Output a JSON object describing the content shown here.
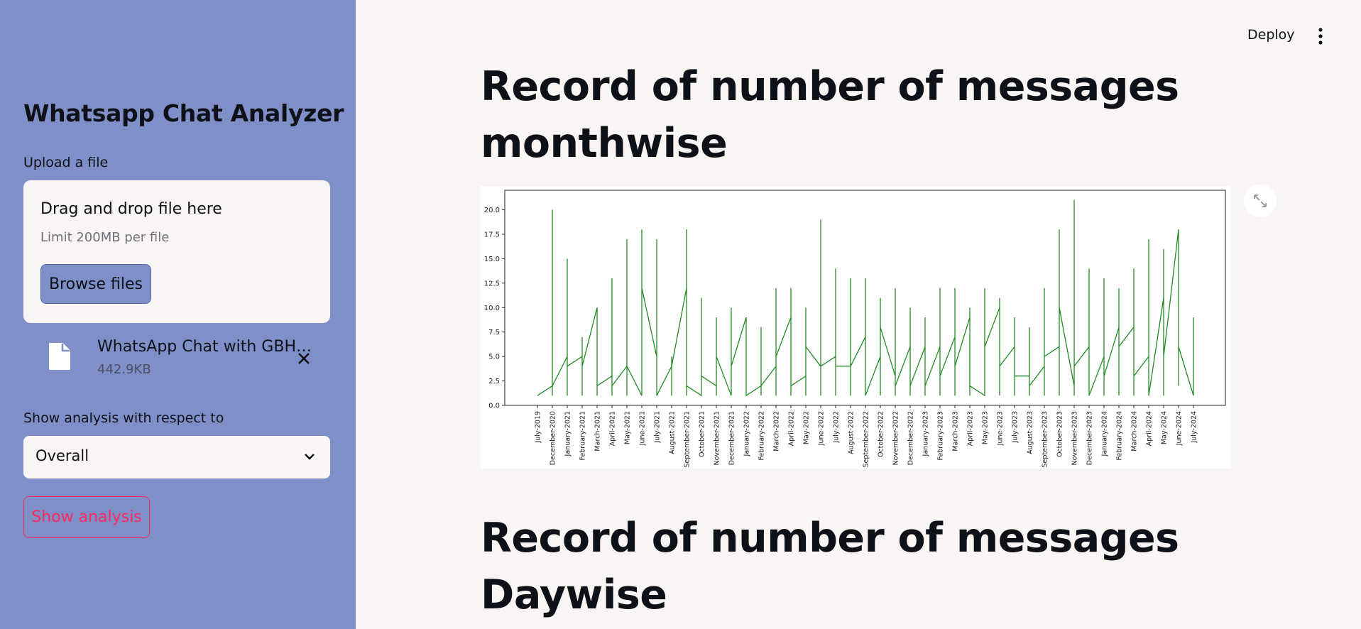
{
  "sidebar": {
    "title": "Whatsapp Chat Analyzer",
    "upload_label": "Upload a file",
    "dropzone": {
      "title": "Drag and drop file here",
      "limit": "Limit 200MB per file",
      "browse_label": "Browse files"
    },
    "file": {
      "name": "WhatsApp Chat with GBH…",
      "size": "442.9KB",
      "icon": "file-icon",
      "remove_icon": "close-icon"
    },
    "analysis_label": "Show analysis with respect to",
    "select_value": "Overall",
    "show_button": "Show analysis"
  },
  "header": {
    "deploy": "Deploy",
    "menu_icon": "vertical-dots-icon"
  },
  "main": {
    "heading1_line1": "Record of number of messages",
    "heading1_line2": "monthwise",
    "heading2_line1": "Record of number of messages",
    "heading2_line2": "Daywise",
    "expand_icon": "fullscreen-icon"
  },
  "colors": {
    "sidebar_bg": "#7f8fc8",
    "page_bg": "#f9f5f4",
    "accent": "#ff2b5f",
    "line": "#228b22"
  },
  "chart_data": {
    "type": "line",
    "title": "",
    "xlabel": "",
    "ylabel": "",
    "ylim": [
      0,
      22
    ],
    "yticks": [
      "0.0",
      "2.5",
      "5.0",
      "7.5",
      "10.0",
      "12.5",
      "15.0",
      "17.5",
      "20.0"
    ],
    "categories": [
      "July-2019",
      "December-2020",
      "January-2021",
      "February-2021",
      "March-2021",
      "April-2021",
      "May-2021",
      "June-2021",
      "July-2021",
      "August-2021",
      "September-2021",
      "October-2021",
      "November-2021",
      "December-2021",
      "January-2022",
      "February-2022",
      "March-2022",
      "April-2022",
      "May-2022",
      "June-2022",
      "July-2022",
      "August-2022",
      "September-2022",
      "October-2022",
      "November-2022",
      "December-2022",
      "January-2023",
      "February-2023",
      "March-2023",
      "April-2023",
      "May-2023",
      "June-2023",
      "July-2023",
      "August-2023",
      "September-2023",
      "October-2023",
      "November-2023",
      "December-2023",
      "January-2024",
      "February-2024",
      "March-2024",
      "April-2024",
      "May-2024",
      "June-2024",
      "July-2024"
    ],
    "series": [
      {
        "color": "#228b22",
        "points": [
          [
            "July-2019",
            1
          ],
          [
            "December-2020",
            2
          ],
          [
            "December-2020",
            20
          ],
          [
            "December-2020",
            1
          ],
          [
            "December-2020",
            2
          ],
          [
            "January-2021",
            5
          ],
          [
            "January-2021",
            15
          ],
          [
            "January-2021",
            1
          ],
          [
            "January-2021",
            4
          ],
          [
            "February-2021",
            5
          ],
          [
            "February-2021",
            7
          ],
          [
            "February-2021",
            1
          ],
          [
            "February-2021",
            4
          ],
          [
            "March-2021",
            10
          ],
          [
            "March-2021",
            1
          ],
          [
            "March-2021",
            2
          ],
          [
            "April-2021",
            3
          ],
          [
            "April-2021",
            13
          ],
          [
            "April-2021",
            1
          ],
          [
            "April-2021",
            2
          ],
          [
            "May-2021",
            4
          ],
          [
            "May-2021",
            17
          ],
          [
            "May-2021",
            1
          ],
          [
            "May-2021",
            4
          ],
          [
            "June-2021",
            1
          ],
          [
            "June-2021",
            18
          ],
          [
            "June-2021",
            12
          ],
          [
            "July-2021",
            5
          ],
          [
            "July-2021",
            17
          ],
          [
            "July-2021",
            1
          ],
          [
            "August-2021",
            4
          ],
          [
            "August-2021",
            5
          ],
          [
            "August-2021",
            1
          ],
          [
            "August-2021",
            4
          ],
          [
            "September-2021",
            12
          ],
          [
            "September-2021",
            18
          ],
          [
            "September-2021",
            1
          ],
          [
            "September-2021",
            2
          ],
          [
            "October-2021",
            1
          ],
          [
            "October-2021",
            11
          ],
          [
            "October-2021",
            3
          ],
          [
            "November-2021",
            2
          ],
          [
            "November-2021",
            9
          ],
          [
            "November-2021",
            1
          ],
          [
            "November-2021",
            5
          ],
          [
            "December-2021",
            1
          ],
          [
            "December-2021",
            10
          ],
          [
            "December-2021",
            4
          ],
          [
            "January-2022",
            9
          ],
          [
            "January-2022",
            1
          ],
          [
            "February-2022",
            2
          ],
          [
            "February-2022",
            8
          ],
          [
            "February-2022",
            1
          ],
          [
            "February-2022",
            2
          ],
          [
            "March-2022",
            4
          ],
          [
            "March-2022",
            12
          ],
          [
            "March-2022",
            1
          ],
          [
            "March-2022",
            5
          ],
          [
            "April-2022",
            9
          ],
          [
            "April-2022",
            12
          ],
          [
            "April-2022",
            1
          ],
          [
            "April-2022",
            2
          ],
          [
            "May-2022",
            3
          ],
          [
            "May-2022",
            10
          ],
          [
            "May-2022",
            1
          ],
          [
            "May-2022",
            6
          ],
          [
            "June-2022",
            4
          ],
          [
            "June-2022",
            19
          ],
          [
            "June-2022",
            1
          ],
          [
            "June-2022",
            4
          ],
          [
            "July-2022",
            5
          ],
          [
            "July-2022",
            14
          ],
          [
            "July-2022",
            1
          ],
          [
            "July-2022",
            4
          ],
          [
            "August-2022",
            4
          ],
          [
            "August-2022",
            13
          ],
          [
            "August-2022",
            1
          ],
          [
            "August-2022",
            4
          ],
          [
            "September-2022",
            7
          ],
          [
            "September-2022",
            13
          ],
          [
            "September-2022",
            1
          ],
          [
            "October-2022",
            5
          ],
          [
            "October-2022",
            11
          ],
          [
            "October-2022",
            1
          ],
          [
            "October-2022",
            8
          ],
          [
            "November-2022",
            3
          ],
          [
            "November-2022",
            12
          ],
          [
            "November-2022",
            1
          ],
          [
            "November-2022",
            2
          ],
          [
            "December-2022",
            6
          ],
          [
            "December-2022",
            10
          ],
          [
            "December-2022",
            1
          ],
          [
            "December-2022",
            2
          ],
          [
            "January-2023",
            6
          ],
          [
            "January-2023",
            9
          ],
          [
            "January-2023",
            1
          ],
          [
            "January-2023",
            2
          ],
          [
            "February-2023",
            6
          ],
          [
            "February-2023",
            12
          ],
          [
            "February-2023",
            1
          ],
          [
            "February-2023",
            3
          ],
          [
            "March-2023",
            7
          ],
          [
            "March-2023",
            12
          ],
          [
            "March-2023",
            1
          ],
          [
            "March-2023",
            4
          ],
          [
            "April-2023",
            9
          ],
          [
            "April-2023",
            10
          ],
          [
            "April-2023",
            1
          ],
          [
            "April-2023",
            2
          ],
          [
            "May-2023",
            1
          ],
          [
            "May-2023",
            12
          ],
          [
            "May-2023",
            6
          ],
          [
            "June-2023",
            10
          ],
          [
            "June-2023",
            11
          ],
          [
            "June-2023",
            1
          ],
          [
            "June-2023",
            4
          ],
          [
            "July-2023",
            6
          ],
          [
            "July-2023",
            9
          ],
          [
            "July-2023",
            1
          ],
          [
            "July-2023",
            3
          ],
          [
            "August-2023",
            3
          ],
          [
            "August-2023",
            8
          ],
          [
            "August-2023",
            1
          ],
          [
            "August-2023",
            2
          ],
          [
            "September-2023",
            4
          ],
          [
            "September-2023",
            12
          ],
          [
            "September-2023",
            1
          ],
          [
            "September-2023",
            5
          ],
          [
            "October-2023",
            6
          ],
          [
            "October-2023",
            18
          ],
          [
            "October-2023",
            1
          ],
          [
            "October-2023",
            10
          ],
          [
            "November-2023",
            2
          ],
          [
            "November-2023",
            21
          ],
          [
            "November-2023",
            1
          ],
          [
            "November-2023",
            4
          ],
          [
            "December-2023",
            6
          ],
          [
            "December-2023",
            14
          ],
          [
            "December-2023",
            1
          ],
          [
            "January-2024",
            5
          ],
          [
            "January-2024",
            13
          ],
          [
            "January-2024",
            1
          ],
          [
            "January-2024",
            3
          ],
          [
            "February-2024",
            8
          ],
          [
            "February-2024",
            12
          ],
          [
            "February-2024",
            1
          ],
          [
            "February-2024",
            6
          ],
          [
            "March-2024",
            8
          ],
          [
            "March-2024",
            14
          ],
          [
            "March-2024",
            1
          ],
          [
            "March-2024",
            3
          ],
          [
            "April-2024",
            5
          ],
          [
            "April-2024",
            17
          ],
          [
            "April-2024",
            1
          ],
          [
            "May-2024",
            11
          ],
          [
            "May-2024",
            16
          ],
          [
            "May-2024",
            1
          ],
          [
            "May-2024",
            5
          ],
          [
            "June-2024",
            18
          ],
          [
            "June-2024",
            2
          ],
          [
            "June-2024",
            6
          ],
          [
            "July-2024",
            1
          ],
          [
            "July-2024",
            9
          ],
          [
            "July-2024",
            1
          ]
        ]
      }
    ],
    "grid": false,
    "legend": "none"
  }
}
